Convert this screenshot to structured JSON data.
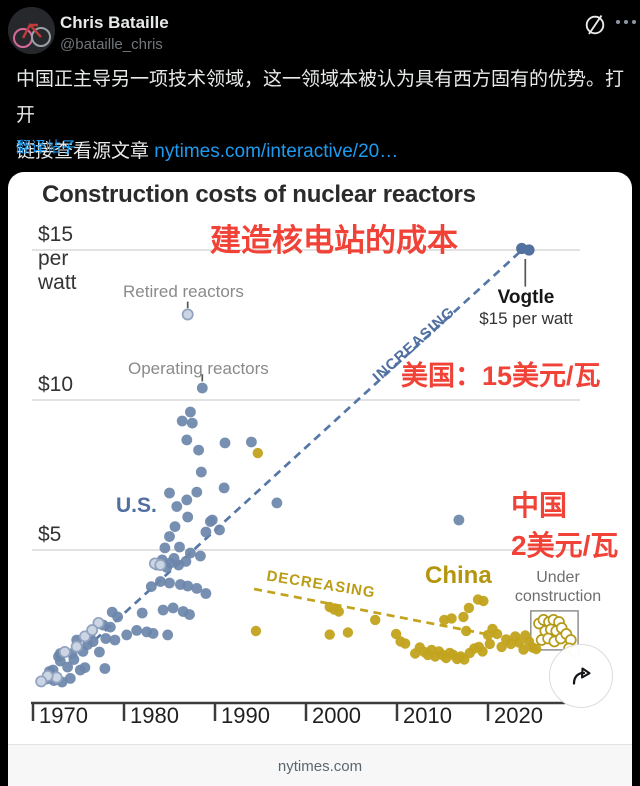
{
  "post": {
    "author": "Chris Bataille",
    "handle": "@bataille_chris",
    "body_line1": "中国正主导另一项技术领域，这一领域本被认为具有西方固有的优势。打开",
    "body_line2_prefix": "链接查看源文章 ",
    "link_text": "nytimes.com/interactive/20…",
    "translate_label": "翻译帖子",
    "icons": [
      "grok-icon",
      "more-options-icon",
      "share-arrow-icon"
    ],
    "colors": {
      "link_blue": "#1d9bf0",
      "background": "#000000",
      "text": "#e7e9ea"
    }
  },
  "card": {
    "source": "nytimes.com"
  },
  "overlay_annotations": {
    "color": "#f04237",
    "top": "建造核电站的成本",
    "us": "美国：15美元/瓦",
    "china_line1": "中国",
    "china_line2": "2美元/瓦"
  },
  "chart_data": {
    "type": "scatter",
    "title": "Construction costs of nuclear reactors",
    "xlabel": "",
    "ylabel": "$ per watt",
    "xlim": [
      1966,
      2031
    ],
    "ylim": [
      0,
      15.7
    ],
    "grid": true,
    "x_ticks": [
      1970,
      1980,
      1990,
      2000,
      2010,
      2020
    ],
    "y_ticks": [
      {
        "label": "$15 per watt",
        "value": 15
      },
      {
        "label": "$10",
        "value": 10
      },
      {
        "label": "$5",
        "value": 5
      }
    ],
    "annotations": {
      "retired_label": "Retired reactors",
      "operating_label": "Operating reactors",
      "us_label": "U.S.",
      "china_label": "China",
      "under_construction_label": "Under construction",
      "vogtle_name": "Vogtle",
      "vogtle_sub": "$15 per watt",
      "increasing_label": "INCREASING",
      "decreasing_label": "DECREASING"
    },
    "trendlines": [
      {
        "name": "us-increasing",
        "color": "#5577a7",
        "points": [
          [
            1976.8,
            2.0
          ],
          [
            2024.1,
            15.1
          ]
        ]
      },
      {
        "name": "china-decreasing",
        "color": "#c2a31d",
        "points": [
          [
            1994.3,
            3.7
          ],
          [
            2020.6,
            2.15
          ]
        ]
      }
    ],
    "under_construction_box": {
      "year1": 2024.7,
      "cost1": 2.97,
      "year2": 2029.9,
      "cost2": 1.67
    },
    "callout_stems": [
      {
        "name": "vogtle-stem",
        "year": 2024.1,
        "from": 14.7,
        "to": 13.78
      },
      {
        "name": "retired-stem",
        "year": 1987.0,
        "from": 13.28,
        "to": 13.06
      },
      {
        "name": "operating-stem",
        "year": 1988.6,
        "from": 10.86,
        "to": 10.62
      }
    ],
    "series": [
      {
        "name": "U.S. operating reactors",
        "fill": "#6d86ab",
        "r": 5.4,
        "opacity": 0.93,
        "points": [
          [
            1971.5,
            0.7
          ],
          [
            1972.3,
            0.65
          ],
          [
            1973.2,
            0.6
          ],
          [
            1974.1,
            0.72
          ],
          [
            1972.2,
            1.0
          ],
          [
            1973,
            1.3
          ],
          [
            1973.8,
            1.1
          ],
          [
            1975.2,
            1.0
          ],
          [
            1975.7,
            1.08
          ],
          [
            1977.9,
            1.05
          ],
          [
            1973,
            1.55
          ],
          [
            1974.3,
            1.55
          ],
          [
            1975.5,
            1.62
          ],
          [
            1976,
            1.85
          ],
          [
            1976.6,
            1.95
          ],
          [
            1974.8,
            2.0
          ],
          [
            1978,
            2.05
          ],
          [
            1979,
            2.0
          ],
          [
            1980.3,
            2.17
          ],
          [
            1981.4,
            2.32
          ],
          [
            1982.5,
            2.27
          ],
          [
            1983.2,
            2.22
          ],
          [
            1984.8,
            2.17
          ],
          [
            1977.7,
            2.5
          ],
          [
            1978.5,
            2.43
          ],
          [
            1978.7,
            2.93
          ],
          [
            1979.3,
            2.77
          ],
          [
            1982,
            2.9
          ],
          [
            1984.3,
            3.0
          ],
          [
            1985.4,
            3.07
          ],
          [
            1986.5,
            2.95
          ],
          [
            1987.2,
            2.85
          ],
          [
            1983,
            3.78
          ],
          [
            1984,
            3.95
          ],
          [
            1985,
            3.9
          ],
          [
            1986.2,
            3.85
          ],
          [
            1987,
            3.8
          ],
          [
            1988,
            3.72
          ],
          [
            1989,
            3.55
          ],
          [
            1983.6,
            4.5
          ],
          [
            1984.2,
            4.67
          ],
          [
            1984.7,
            4.42
          ],
          [
            1985.1,
            4.57
          ],
          [
            1985.5,
            4.72
          ],
          [
            1986,
            4.5
          ],
          [
            1986.8,
            4.62
          ],
          [
            1987.3,
            4.9
          ],
          [
            1988.4,
            4.8
          ],
          [
            1984.5,
            5.07
          ],
          [
            1986.1,
            5.1
          ],
          [
            1985,
            5.45
          ],
          [
            1985.6,
            5.78
          ],
          [
            1989,
            5.6
          ],
          [
            1989.5,
            5.95
          ],
          [
            1987,
            6.1
          ],
          [
            1990.5,
            5.67
          ],
          [
            1989.7,
            6.0
          ],
          [
            1985.8,
            6.45
          ],
          [
            1986.9,
            6.67
          ],
          [
            1985,
            6.9
          ],
          [
            1988,
            6.93
          ],
          [
            1991,
            7.07
          ],
          [
            1988.5,
            7.6
          ],
          [
            1988.2,
            8.33
          ],
          [
            1986.9,
            8.67
          ],
          [
            1991.1,
            8.57
          ],
          [
            1994,
            8.6
          ],
          [
            1987.5,
            9.23
          ],
          [
            1986.4,
            9.3
          ],
          [
            1987.3,
            9.6
          ],
          [
            1988.6,
            10.4
          ],
          [
            1996.8,
            6.57
          ],
          [
            2016.8,
            6.0
          ],
          [
            1972.8,
            1.45
          ],
          [
            1976.3,
            2.2
          ],
          [
            1971.8,
            0.95
          ],
          [
            1974.5,
            1.35
          ],
          [
            1977.3,
            1.6
          ]
        ]
      },
      {
        "name": "U.S. retired reactors",
        "fill": "#cbd5e3",
        "stroke": "#91a3bf",
        "r": 5.1,
        "opacity": 1,
        "points": [
          [
            1987,
            12.85
          ],
          [
            1972.6,
            0.75
          ],
          [
            1973.5,
            1.6
          ],
          [
            1974.8,
            1.78
          ],
          [
            1975.7,
            2.12
          ],
          [
            1977.2,
            2.57
          ],
          [
            1971.6,
            0.8
          ],
          [
            1983.4,
            4.55
          ],
          [
            1984,
            4.5
          ],
          [
            1976.5,
            2.33
          ],
          [
            1970.9,
            0.62
          ]
        ]
      },
      {
        "name": "China reactors",
        "fill": "#c3a31d",
        "r": 5.2,
        "opacity": 0.95,
        "points": [
          [
            1994.7,
            8.23
          ],
          [
            1994.5,
            2.3
          ],
          [
            2002.6,
            2.18
          ],
          [
            2004.6,
            2.25
          ],
          [
            2002.6,
            3.1
          ],
          [
            2003.1,
            3.02
          ],
          [
            2003.6,
            2.95
          ],
          [
            2007.6,
            2.67
          ],
          [
            2009.9,
            2.2
          ],
          [
            2010.4,
            1.95
          ],
          [
            2010.9,
            1.88
          ],
          [
            2012,
            1.55
          ],
          [
            2012.5,
            1.75
          ],
          [
            2013,
            1.6
          ],
          [
            2013.4,
            1.5
          ],
          [
            2013.8,
            1.67
          ],
          [
            2014.2,
            1.45
          ],
          [
            2014.6,
            1.62
          ],
          [
            2015,
            1.5
          ],
          [
            2015.4,
            1.4
          ],
          [
            2015.8,
            1.57
          ],
          [
            2016.2,
            1.5
          ],
          [
            2016.6,
            1.37
          ],
          [
            2017,
            1.45
          ],
          [
            2017.4,
            1.35
          ],
          [
            2015.2,
            2.67
          ],
          [
            2016,
            2.72
          ],
          [
            2017.3,
            2.77
          ],
          [
            2017.9,
            3.07
          ],
          [
            2018.9,
            3.35
          ],
          [
            2019.5,
            3.3
          ],
          [
            2017.6,
            2.3
          ],
          [
            2018,
            1.57
          ],
          [
            2018.5,
            1.72
          ],
          [
            2019,
            1.77
          ],
          [
            2019.4,
            1.62
          ],
          [
            2020,
            2.17
          ],
          [
            2020.5,
            2.37
          ],
          [
            2021,
            2.2
          ],
          [
            2020.2,
            1.87
          ],
          [
            2021.5,
            1.77
          ],
          [
            2022,
            2.02
          ],
          [
            2022.5,
            1.87
          ],
          [
            2023,
            2.12
          ],
          [
            2023.4,
            1.92
          ],
          [
            2023.9,
            1.68
          ],
          [
            2024.1,
            2.15
          ],
          [
            2024.5,
            1.95
          ],
          [
            2024.9,
            1.75
          ],
          [
            2025.3,
            1.7
          ]
        ]
      },
      {
        "name": "China under construction",
        "fill": "#ffffff",
        "stroke": "#b59a18",
        "r": 5.0,
        "opacity": 1,
        "points": [
          [
            2025.6,
            2.55
          ],
          [
            2026.1,
            2.67
          ],
          [
            2026.7,
            2.6
          ],
          [
            2027.2,
            2.67
          ],
          [
            2027.8,
            2.6
          ],
          [
            2026.3,
            2.3
          ],
          [
            2026.9,
            2.35
          ],
          [
            2027.5,
            2.3
          ],
          [
            2028.1,
            2.4
          ],
          [
            2025.9,
            2.0
          ],
          [
            2026.6,
            2.05
          ],
          [
            2027.3,
            1.95
          ],
          [
            2028.0,
            2.05
          ],
          [
            2028.6,
            2.2
          ],
          [
            2029.1,
            2.0
          ],
          [
            2028.9,
            1.72
          ],
          [
            2029.5,
            1.62
          ]
        ]
      },
      {
        "name": "Vogtle",
        "fill": "#53719f",
        "r": 5.6,
        "opacity": 1,
        "points": [
          [
            2023.7,
            15.05
          ],
          [
            2024.5,
            15.0
          ]
        ]
      }
    ]
  }
}
